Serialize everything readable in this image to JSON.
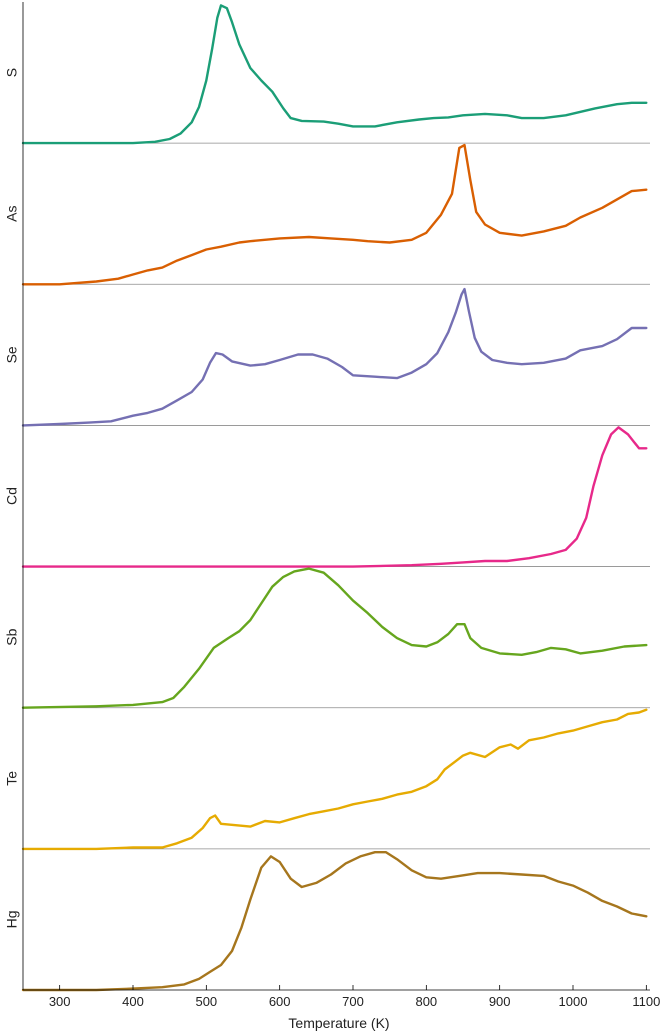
{
  "chart_data": {
    "type": "line",
    "layout": "stacked-panels",
    "xlabel": "Temperature (K)",
    "xlim": [
      250,
      1105
    ],
    "xticks": [
      300,
      400,
      500,
      600,
      700,
      800,
      900,
      1000,
      1100
    ],
    "ylim": [
      0,
      1
    ],
    "series": [
      {
        "name": "S",
        "color": "#1b9e77",
        "points": [
          [
            250,
            0
          ],
          [
            400,
            0
          ],
          [
            430,
            0.01
          ],
          [
            450,
            0.03
          ],
          [
            465,
            0.07
          ],
          [
            480,
            0.15
          ],
          [
            490,
            0.26
          ],
          [
            500,
            0.45
          ],
          [
            508,
            0.68
          ],
          [
            515,
            0.9
          ],
          [
            520,
            0.99
          ],
          [
            528,
            0.97
          ],
          [
            535,
            0.87
          ],
          [
            545,
            0.71
          ],
          [
            560,
            0.54
          ],
          [
            575,
            0.45
          ],
          [
            590,
            0.37
          ],
          [
            605,
            0.25
          ],
          [
            615,
            0.18
          ],
          [
            630,
            0.16
          ],
          [
            660,
            0.155
          ],
          [
            680,
            0.14
          ],
          [
            700,
            0.12
          ],
          [
            730,
            0.12
          ],
          [
            760,
            0.15
          ],
          [
            790,
            0.17
          ],
          [
            810,
            0.18
          ],
          [
            830,
            0.185
          ],
          [
            850,
            0.2
          ],
          [
            880,
            0.21
          ],
          [
            910,
            0.2
          ],
          [
            930,
            0.18
          ],
          [
            960,
            0.18
          ],
          [
            990,
            0.2
          ],
          [
            1030,
            0.25
          ],
          [
            1060,
            0.28
          ],
          [
            1080,
            0.29
          ],
          [
            1100,
            0.29
          ]
        ]
      },
      {
        "name": "As",
        "color": "#d95f02",
        "points": [
          [
            250,
            0
          ],
          [
            300,
            0
          ],
          [
            350,
            0.02
          ],
          [
            380,
            0.04
          ],
          [
            400,
            0.07
          ],
          [
            420,
            0.1
          ],
          [
            440,
            0.12
          ],
          [
            460,
            0.17
          ],
          [
            480,
            0.21
          ],
          [
            500,
            0.25
          ],
          [
            520,
            0.27
          ],
          [
            545,
            0.3
          ],
          [
            560,
            0.31
          ],
          [
            600,
            0.33
          ],
          [
            640,
            0.34
          ],
          [
            670,
            0.33
          ],
          [
            700,
            0.32
          ],
          [
            720,
            0.31
          ],
          [
            750,
            0.3
          ],
          [
            780,
            0.32
          ],
          [
            800,
            0.37
          ],
          [
            820,
            0.5
          ],
          [
            835,
            0.65
          ],
          [
            845,
            0.98
          ],
          [
            852,
            1.0
          ],
          [
            860,
            0.75
          ],
          [
            868,
            0.52
          ],
          [
            880,
            0.43
          ],
          [
            900,
            0.37
          ],
          [
            930,
            0.35
          ],
          [
            960,
            0.38
          ],
          [
            990,
            0.42
          ],
          [
            1010,
            0.48
          ],
          [
            1040,
            0.55
          ],
          [
            1060,
            0.61
          ],
          [
            1080,
            0.67
          ],
          [
            1100,
            0.68
          ]
        ]
      },
      {
        "name": "Se",
        "color": "#7570b3",
        "points": [
          [
            250,
            0
          ],
          [
            300,
            0.01
          ],
          [
            340,
            0.02
          ],
          [
            370,
            0.03
          ],
          [
            400,
            0.07
          ],
          [
            420,
            0.09
          ],
          [
            440,
            0.12
          ],
          [
            460,
            0.18
          ],
          [
            480,
            0.24
          ],
          [
            495,
            0.33
          ],
          [
            505,
            0.45
          ],
          [
            513,
            0.52
          ],
          [
            522,
            0.51
          ],
          [
            535,
            0.46
          ],
          [
            560,
            0.43
          ],
          [
            580,
            0.44
          ],
          [
            600,
            0.47
          ],
          [
            625,
            0.51
          ],
          [
            645,
            0.51
          ],
          [
            665,
            0.48
          ],
          [
            685,
            0.42
          ],
          [
            700,
            0.36
          ],
          [
            730,
            0.35
          ],
          [
            760,
            0.34
          ],
          [
            780,
            0.38
          ],
          [
            800,
            0.44
          ],
          [
            815,
            0.52
          ],
          [
            830,
            0.67
          ],
          [
            840,
            0.81
          ],
          [
            848,
            0.94
          ],
          [
            852,
            0.98
          ],
          [
            858,
            0.82
          ],
          [
            866,
            0.63
          ],
          [
            875,
            0.53
          ],
          [
            890,
            0.47
          ],
          [
            910,
            0.45
          ],
          [
            930,
            0.44
          ],
          [
            960,
            0.45
          ],
          [
            990,
            0.48
          ],
          [
            1010,
            0.54
          ],
          [
            1040,
            0.57
          ],
          [
            1060,
            0.62
          ],
          [
            1080,
            0.7
          ],
          [
            1100,
            0.7
          ]
        ]
      },
      {
        "name": "Cd",
        "color": "#e7298a",
        "points": [
          [
            250,
            0
          ],
          [
            700,
            0
          ],
          [
            780,
            0.01
          ],
          [
            820,
            0.02
          ],
          [
            850,
            0.03
          ],
          [
            880,
            0.04
          ],
          [
            910,
            0.04
          ],
          [
            940,
            0.06
          ],
          [
            970,
            0.09
          ],
          [
            990,
            0.12
          ],
          [
            1005,
            0.2
          ],
          [
            1018,
            0.35
          ],
          [
            1028,
            0.58
          ],
          [
            1040,
            0.8
          ],
          [
            1052,
            0.95
          ],
          [
            1062,
            1.0
          ],
          [
            1075,
            0.95
          ],
          [
            1090,
            0.85
          ],
          [
            1100,
            0.85
          ]
        ]
      },
      {
        "name": "Sb",
        "color": "#66a61e",
        "points": [
          [
            250,
            0
          ],
          [
            350,
            0.01
          ],
          [
            400,
            0.02
          ],
          [
            440,
            0.04
          ],
          [
            455,
            0.07
          ],
          [
            470,
            0.15
          ],
          [
            490,
            0.28
          ],
          [
            510,
            0.43
          ],
          [
            530,
            0.5
          ],
          [
            545,
            0.55
          ],
          [
            560,
            0.63
          ],
          [
            575,
            0.75
          ],
          [
            590,
            0.87
          ],
          [
            605,
            0.94
          ],
          [
            620,
            0.98
          ],
          [
            640,
            1.0
          ],
          [
            660,
            0.97
          ],
          [
            680,
            0.88
          ],
          [
            700,
            0.77
          ],
          [
            720,
            0.68
          ],
          [
            740,
            0.58
          ],
          [
            760,
            0.5
          ],
          [
            780,
            0.45
          ],
          [
            800,
            0.44
          ],
          [
            815,
            0.47
          ],
          [
            830,
            0.53
          ],
          [
            842,
            0.6
          ],
          [
            852,
            0.6
          ],
          [
            860,
            0.5
          ],
          [
            875,
            0.43
          ],
          [
            900,
            0.39
          ],
          [
            930,
            0.38
          ],
          [
            950,
            0.4
          ],
          [
            970,
            0.43
          ],
          [
            990,
            0.42
          ],
          [
            1010,
            0.39
          ],
          [
            1040,
            0.41
          ],
          [
            1070,
            0.44
          ],
          [
            1100,
            0.45
          ]
        ]
      },
      {
        "name": "Te",
        "color": "#e6ab02",
        "points": [
          [
            250,
            0
          ],
          [
            300,
            0.0
          ],
          [
            350,
            0.0
          ],
          [
            400,
            0.01
          ],
          [
            440,
            0.01
          ],
          [
            460,
            0.04
          ],
          [
            480,
            0.08
          ],
          [
            495,
            0.15
          ],
          [
            505,
            0.22
          ],
          [
            512,
            0.24
          ],
          [
            520,
            0.18
          ],
          [
            540,
            0.17
          ],
          [
            560,
            0.16
          ],
          [
            580,
            0.2
          ],
          [
            600,
            0.19
          ],
          [
            620,
            0.22
          ],
          [
            640,
            0.25
          ],
          [
            660,
            0.27
          ],
          [
            680,
            0.29
          ],
          [
            700,
            0.32
          ],
          [
            720,
            0.34
          ],
          [
            740,
            0.36
          ],
          [
            760,
            0.39
          ],
          [
            780,
            0.41
          ],
          [
            800,
            0.45
          ],
          [
            815,
            0.5
          ],
          [
            825,
            0.57
          ],
          [
            840,
            0.63
          ],
          [
            850,
            0.67
          ],
          [
            860,
            0.69
          ],
          [
            880,
            0.66
          ],
          [
            900,
            0.73
          ],
          [
            915,
            0.75
          ],
          [
            925,
            0.72
          ],
          [
            940,
            0.78
          ],
          [
            960,
            0.8
          ],
          [
            980,
            0.83
          ],
          [
            1000,
            0.85
          ],
          [
            1020,
            0.88
          ],
          [
            1040,
            0.91
          ],
          [
            1060,
            0.93
          ],
          [
            1075,
            0.97
          ],
          [
            1090,
            0.98
          ],
          [
            1100,
            1.0
          ]
        ]
      },
      {
        "name": "Hg",
        "color": "#a6761d",
        "points": [
          [
            250,
            0
          ],
          [
            350,
            0
          ],
          [
            400,
            0.01
          ],
          [
            440,
            0.02
          ],
          [
            470,
            0.04
          ],
          [
            490,
            0.08
          ],
          [
            505,
            0.13
          ],
          [
            520,
            0.18
          ],
          [
            535,
            0.28
          ],
          [
            548,
            0.45
          ],
          [
            560,
            0.65
          ],
          [
            575,
            0.88
          ],
          [
            588,
            0.96
          ],
          [
            600,
            0.92
          ],
          [
            615,
            0.8
          ],
          [
            630,
            0.74
          ],
          [
            650,
            0.77
          ],
          [
            670,
            0.83
          ],
          [
            690,
            0.91
          ],
          [
            710,
            0.96
          ],
          [
            730,
            0.99
          ],
          [
            745,
            0.99
          ],
          [
            760,
            0.94
          ],
          [
            780,
            0.86
          ],
          [
            800,
            0.81
          ],
          [
            820,
            0.8
          ],
          [
            845,
            0.82
          ],
          [
            870,
            0.84
          ],
          [
            900,
            0.84
          ],
          [
            930,
            0.83
          ],
          [
            960,
            0.82
          ],
          [
            980,
            0.78
          ],
          [
            1000,
            0.75
          ],
          [
            1020,
            0.7
          ],
          [
            1040,
            0.64
          ],
          [
            1060,
            0.6
          ],
          [
            1080,
            0.55
          ],
          [
            1100,
            0.53
          ]
        ]
      }
    ]
  }
}
